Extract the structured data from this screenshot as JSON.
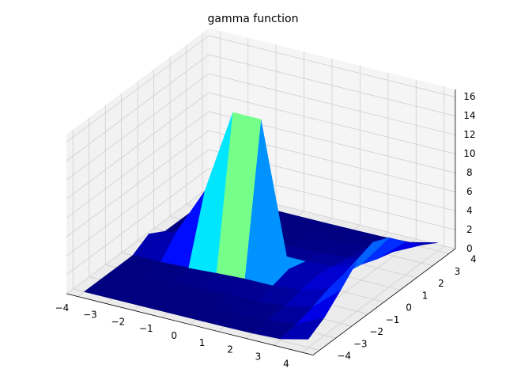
{
  "chart_data": {
    "type": "surface",
    "title": "gamma function",
    "colormap": "jet",
    "grid": true,
    "x": [
      -4,
      -3,
      -2,
      -1,
      0,
      1,
      2,
      3,
      4
    ],
    "y": [
      -4,
      -3,
      -2,
      -1,
      0,
      1,
      2,
      3,
      4
    ],
    "z": [
      [
        0,
        0,
        0,
        0,
        0,
        0.01,
        0.04,
        0.17,
        0.87
      ],
      [
        0,
        0,
        0,
        0,
        0.01,
        0.04,
        0.12,
        0.45,
        1.89
      ],
      [
        0,
        0,
        0.01,
        0.03,
        0.08,
        0.15,
        0.34,
        0.97,
        3.49
      ],
      [
        0.01,
        0.05,
        0.17,
        0.37,
        0.52,
        0.52,
        0.74,
        1.65,
        5.21
      ],
      [
        1,
        2,
        7,
        16,
        16,
        1,
        1,
        2,
        6
      ],
      [
        0.01,
        0.05,
        0.17,
        0.37,
        0.52,
        0.52,
        0.74,
        1.65,
        5.21
      ],
      [
        0,
        0,
        0.01,
        0.03,
        0.08,
        0.15,
        0.34,
        0.97,
        3.49
      ],
      [
        0,
        0,
        0,
        0,
        0.01,
        0.04,
        0.12,
        0.45,
        1.89
      ],
      [
        0,
        0,
        0,
        0,
        0,
        0.01,
        0.04,
        0.17,
        0.87
      ]
    ],
    "xlim": [
      -4.4,
      4.4
    ],
    "ylim": [
      -4.4,
      4.4
    ],
    "zlim": [
      0,
      16.8
    ],
    "xticks": [
      {
        "value": -4,
        "label": "−4"
      },
      {
        "value": -3,
        "label": "−3"
      },
      {
        "value": -2,
        "label": "−2"
      },
      {
        "value": -1,
        "label": "−1"
      },
      0,
      1,
      2,
      3,
      4
    ],
    "yticks": [
      {
        "value": -4,
        "label": "−4"
      },
      {
        "value": -3,
        "label": "−3"
      },
      {
        "value": -2,
        "label": "−2"
      },
      {
        "value": -1,
        "label": "−1"
      },
      0,
      1,
      2,
      3,
      4
    ],
    "zticks": [
      0,
      2,
      4,
      6,
      8,
      10,
      12,
      14,
      16
    ]
  }
}
